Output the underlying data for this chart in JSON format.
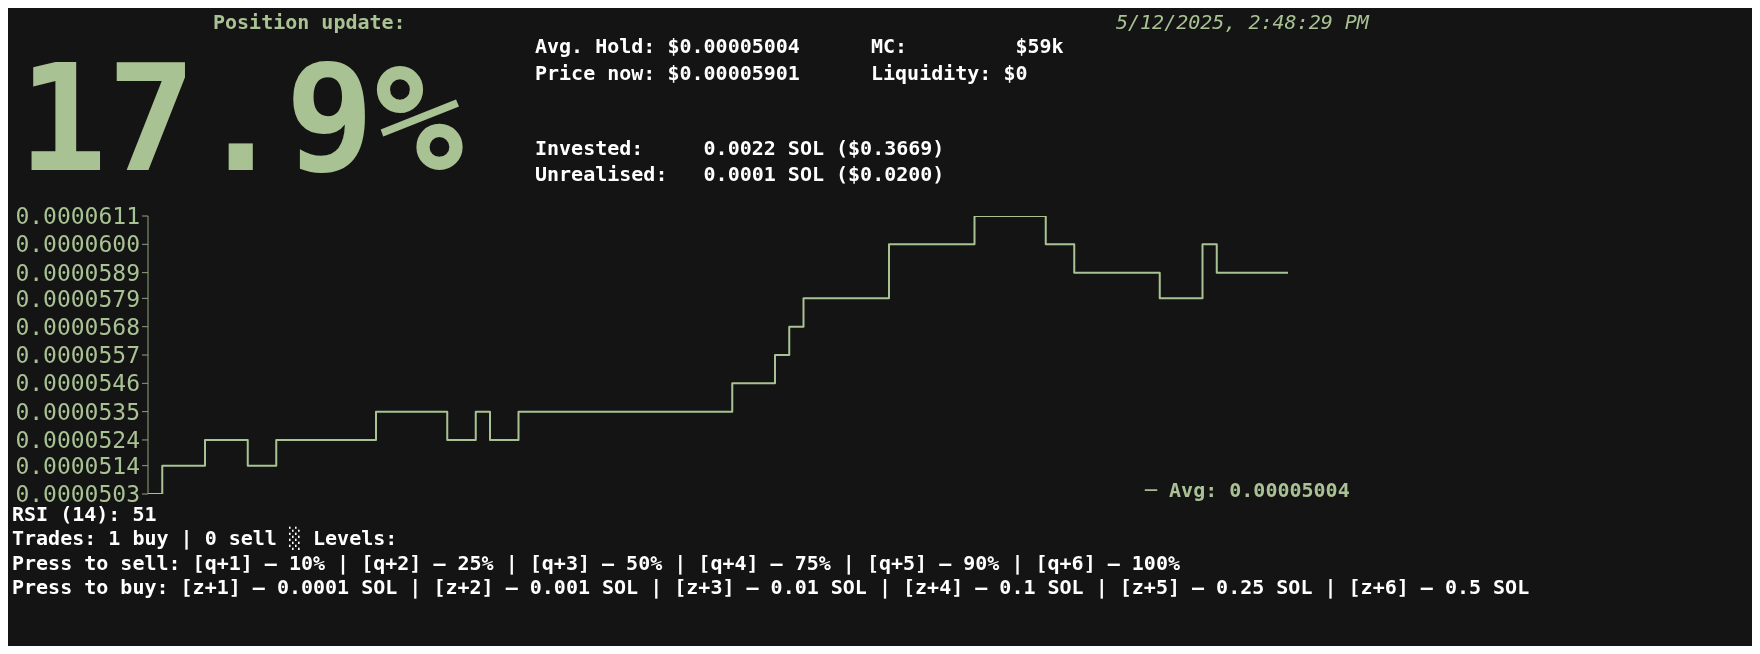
{
  "chart_data": {
    "type": "step",
    "title": "Position update:",
    "subtitle": "5/12/2025, 2:48:29 PM",
    "annotations": [
      "17.9%",
      "Avg. Hold: $0.00005004",
      "MC:         $59k",
      "Price now: $0.00005901",
      "Liquidity: $0",
      "Invested:     0.0022 SOL ($0.3669)",
      "Unrealised:   0.0001 SOL ($0.0200)",
      "─ Avg: 0.00005004",
      "RSI (14): 51",
      "Trades: 1 buy | 0 sell ░ Levels:",
      "Press to sell: [q+1] – 10% | [q+2] – 25% | [q+3] – 50% | [q+4] – 75% | [q+5] – 90% | [q+6] – 100%",
      "Press to buy: [z+1] – 0.0001 SOL | [z+2] – 0.001 SOL | [z+3] – 0.01 SOL | [z+4] – 0.1 SOL | [z+5] – 0.25 SOL | [z+6] – 0.5 SOL"
    ],
    "categories": [
      null,
      null,
      null,
      null,
      null,
      null,
      null,
      null,
      null,
      null,
      null,
      null,
      null,
      null,
      null,
      null,
      null,
      null,
      null,
      null,
      null,
      null,
      null,
      null,
      null,
      null,
      null,
      null,
      null,
      null,
      null,
      null,
      null,
      null,
      null,
      null,
      null,
      null,
      null,
      null,
      null,
      null,
      null,
      null,
      null,
      null,
      null,
      null,
      null,
      null,
      null,
      null,
      null,
      null,
      null,
      null,
      null,
      null,
      null,
      null,
      null,
      null,
      null,
      null,
      null,
      null,
      null,
      null,
      null,
      null,
      null,
      null,
      null,
      null,
      null,
      null,
      null,
      null,
      null,
      null,
      null
    ],
    "series": [
      {
        "color": "#a9c293",
        "values": [
          5.03e-05,
          5.14e-05,
          5.14e-05,
          5.14e-05,
          5.24e-05,
          5.24e-05,
          5.24e-05,
          5.14e-05,
          5.14e-05,
          5.24e-05,
          5.24e-05,
          5.24e-05,
          5.24e-05,
          5.24e-05,
          5.24e-05,
          5.24e-05,
          5.35e-05,
          5.35e-05,
          5.35e-05,
          5.35e-05,
          5.35e-05,
          5.24e-05,
          5.24e-05,
          5.35e-05,
          5.24e-05,
          5.24e-05,
          5.35e-05,
          5.35e-05,
          5.35e-05,
          5.35e-05,
          5.35e-05,
          5.35e-05,
          5.35e-05,
          5.35e-05,
          5.35e-05,
          5.35e-05,
          5.35e-05,
          5.35e-05,
          5.35e-05,
          5.35e-05,
          5.35e-05,
          5.46e-05,
          5.46e-05,
          5.46e-05,
          5.57e-05,
          5.68e-05,
          5.79e-05,
          5.79e-05,
          5.79e-05,
          5.79e-05,
          5.79e-05,
          5.79e-05,
          6e-05,
          6e-05,
          6e-05,
          6e-05,
          6e-05,
          6e-05,
          6.11e-05,
          6.11e-05,
          6.11e-05,
          6.11e-05,
          6.11e-05,
          6e-05,
          6e-05,
          5.89e-05,
          5.89e-05,
          5.89e-05,
          5.89e-05,
          5.89e-05,
          5.89e-05,
          5.79e-05,
          5.79e-05,
          5.79e-05,
          6e-05,
          5.89e-05,
          5.89e-05,
          5.89e-05,
          5.89e-05,
          5.89e-05,
          5.89e-05
        ]
      }
    ],
    "ylim": [
      5.03e-05,
      6.11e-05
    ],
    "yticks": [
      {
        "value": 5.03e-05,
        "label": "0.0000503"
      },
      {
        "value": 5.14e-05,
        "label": "0.0000514"
      },
      {
        "value": 5.24e-05,
        "label": "0.0000524"
      },
      {
        "value": 5.35e-05,
        "label": "0.0000535"
      },
      {
        "value": 5.46e-05,
        "label": "0.0000546"
      },
      {
        "value": 5.57e-05,
        "label": "0.0000557"
      },
      {
        "value": 5.68e-05,
        "label": "0.0000568"
      },
      {
        "value": 5.79e-05,
        "label": "0.0000579"
      },
      {
        "value": 5.89e-05,
        "label": "0.0000589"
      },
      {
        "value": 6e-05,
        "label": "0.0000600"
      },
      {
        "value": 6.11e-05,
        "label": "0.0000611"
      }
    ],
    "grid": false,
    "legend": false,
    "marker": "none",
    "line_style": "solid"
  }
}
